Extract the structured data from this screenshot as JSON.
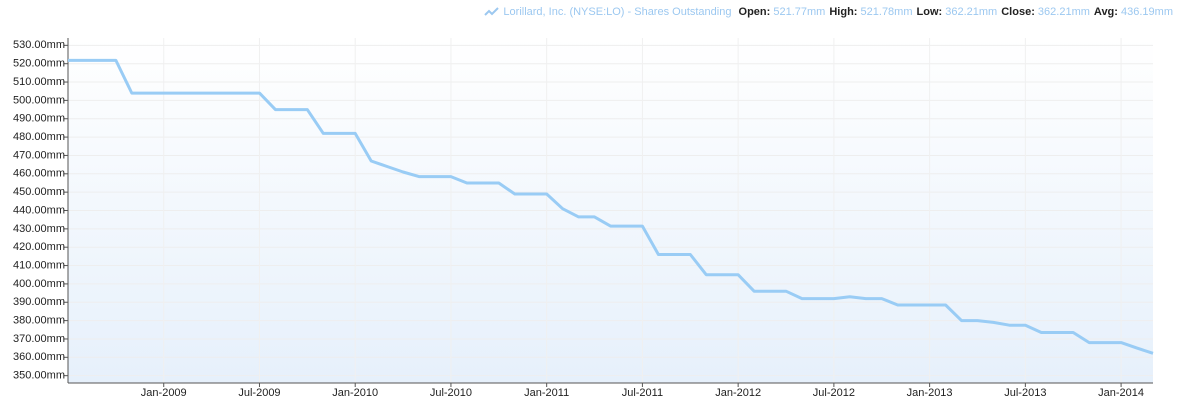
{
  "chart_data": {
    "type": "line",
    "stats": [
      {
        "label": "Open:",
        "value": "521.77mm"
      },
      {
        "label": "High:",
        "value": "521.78mm"
      },
      {
        "label": "Low:",
        "value": "362.21mm"
      },
      {
        "label": "Close:",
        "value": "362.21mm"
      },
      {
        "label": "Avg:",
        "value": "436.19mm"
      }
    ],
    "x": [
      "2008-07",
      "2008-08",
      "2008-09",
      "2008-10",
      "2008-11",
      "2008-12",
      "2009-01",
      "2009-02",
      "2009-03",
      "2009-04",
      "2009-05",
      "2009-06",
      "2009-07",
      "2009-08",
      "2009-09",
      "2009-10",
      "2009-11",
      "2009-12",
      "2010-01",
      "2010-02",
      "2010-03",
      "2010-04",
      "2010-05",
      "2010-06",
      "2010-07",
      "2010-08",
      "2010-09",
      "2010-10",
      "2010-11",
      "2010-12",
      "2011-01",
      "2011-02",
      "2011-03",
      "2011-04",
      "2011-05",
      "2011-06",
      "2011-07",
      "2011-08",
      "2011-09",
      "2011-10",
      "2011-11",
      "2011-12",
      "2012-01",
      "2012-02",
      "2012-03",
      "2012-04",
      "2012-05",
      "2012-06",
      "2012-07",
      "2012-08",
      "2012-09",
      "2012-10",
      "2012-11",
      "2012-12",
      "2013-01",
      "2013-02",
      "2013-03",
      "2013-04",
      "2013-05",
      "2013-06",
      "2013-07",
      "2013-08",
      "2013-09",
      "2013-10",
      "2013-11",
      "2013-12",
      "2014-01",
      "2014-02",
      "2014-03"
    ],
    "series": [
      {
        "name": "Lorillard, Inc. (NYSE:LO) - Shares Outstanding",
        "color": "#99ccf5",
        "values": [
          521.8,
          521.8,
          521.8,
          521.8,
          504,
          504,
          504,
          504,
          504,
          504,
          504,
          504,
          504,
          495,
          495,
          495,
          482,
          482,
          482,
          467,
          464,
          461,
          458.5,
          458.5,
          458.5,
          455,
          455,
          455,
          449,
          449,
          449,
          441,
          436.5,
          436.5,
          431.5,
          431.5,
          431.5,
          416,
          416,
          416,
          405,
          405,
          405,
          396,
          396,
          396,
          392,
          392,
          392,
          393,
          392,
          392,
          388.5,
          388.5,
          388.5,
          388.5,
          380,
          380,
          379,
          377.5,
          377.5,
          373.5,
          373.5,
          373.5,
          368,
          368,
          368,
          365,
          362.2
        ]
      }
    ],
    "xlim": [
      "2008-07",
      "2014-03"
    ],
    "xticks": [
      {
        "value": "2009-01",
        "label": "Jan-2009"
      },
      {
        "value": "2009-07",
        "label": "Jul-2009"
      },
      {
        "value": "2010-01",
        "label": "Jan-2010"
      },
      {
        "value": "2010-07",
        "label": "Jul-2010"
      },
      {
        "value": "2011-01",
        "label": "Jan-2011"
      },
      {
        "value": "2011-07",
        "label": "Jul-2011"
      },
      {
        "value": "2012-01",
        "label": "Jan-2012"
      },
      {
        "value": "2012-07",
        "label": "Jul-2012"
      },
      {
        "value": "2013-01",
        "label": "Jan-2013"
      },
      {
        "value": "2013-07",
        "label": "Jul-2013"
      },
      {
        "value": "2014-01",
        "label": "Jan-2014"
      }
    ],
    "ylim": [
      346,
      534
    ],
    "yticks": [
      {
        "value": 350,
        "label": "350.00mm"
      },
      {
        "value": 360,
        "label": "360.00mm"
      },
      {
        "value": 370,
        "label": "370.00mm"
      },
      {
        "value": 380,
        "label": "380.00mm"
      },
      {
        "value": 390,
        "label": "390.00mm"
      },
      {
        "value": 400,
        "label": "400.00mm"
      },
      {
        "value": 410,
        "label": "410.00mm"
      },
      {
        "value": 420,
        "label": "420.00mm"
      },
      {
        "value": 430,
        "label": "430.00mm"
      },
      {
        "value": 440,
        "label": "440.00mm"
      },
      {
        "value": 450,
        "label": "450.00mm"
      },
      {
        "value": 460,
        "label": "460.00mm"
      },
      {
        "value": 470,
        "label": "470.00mm"
      },
      {
        "value": 480,
        "label": "480.00mm"
      },
      {
        "value": 490,
        "label": "490.00mm"
      },
      {
        "value": 500,
        "label": "500.00mm"
      },
      {
        "value": 510,
        "label": "510.00mm"
      },
      {
        "value": 520,
        "label": "520.00mm"
      },
      {
        "value": 530,
        "label": "530.00mm"
      }
    ],
    "grid": true
  }
}
